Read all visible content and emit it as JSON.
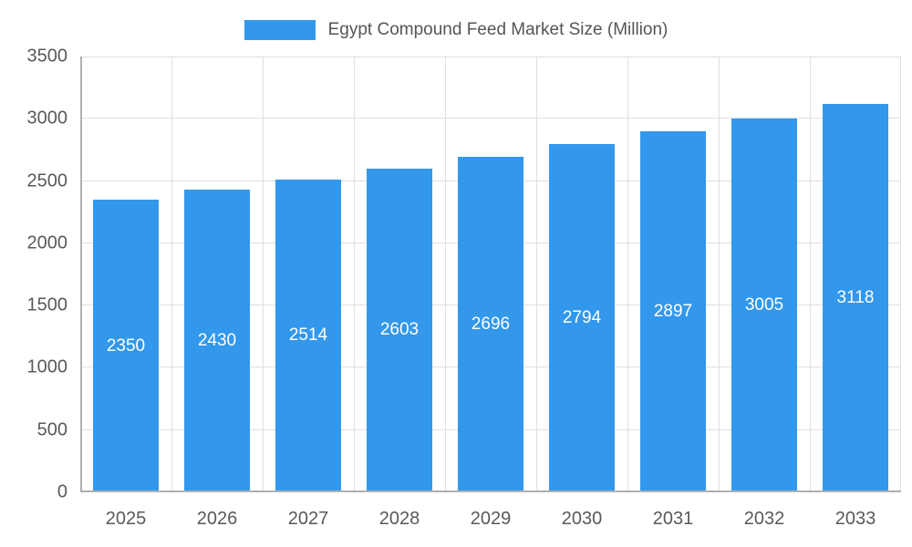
{
  "chart_data": {
    "type": "bar",
    "title": "Egypt Compound Feed Market Size (Million)",
    "categories": [
      "2025",
      "2026",
      "2027",
      "2028",
      "2029",
      "2030",
      "2031",
      "2032",
      "2033"
    ],
    "values": [
      2350,
      2430,
      2514,
      2603,
      2696,
      2794,
      2897,
      3005,
      3118
    ],
    "xlabel": "",
    "ylabel": "",
    "ylim": [
      0,
      3500
    ],
    "yticks": [
      0,
      500,
      1000,
      1500,
      2000,
      2500,
      3000,
      3500
    ],
    "grid": true,
    "legend_position": "top-center",
    "bar_color": "#3398EB",
    "value_label_color": "#ffffff",
    "axis_text_color": "#595959",
    "grid_color": "#e0e0e0",
    "axis_line_color": "#b0b0b0"
  },
  "legend": {
    "label": "Egypt Compound Feed Market Size (Million)"
  }
}
